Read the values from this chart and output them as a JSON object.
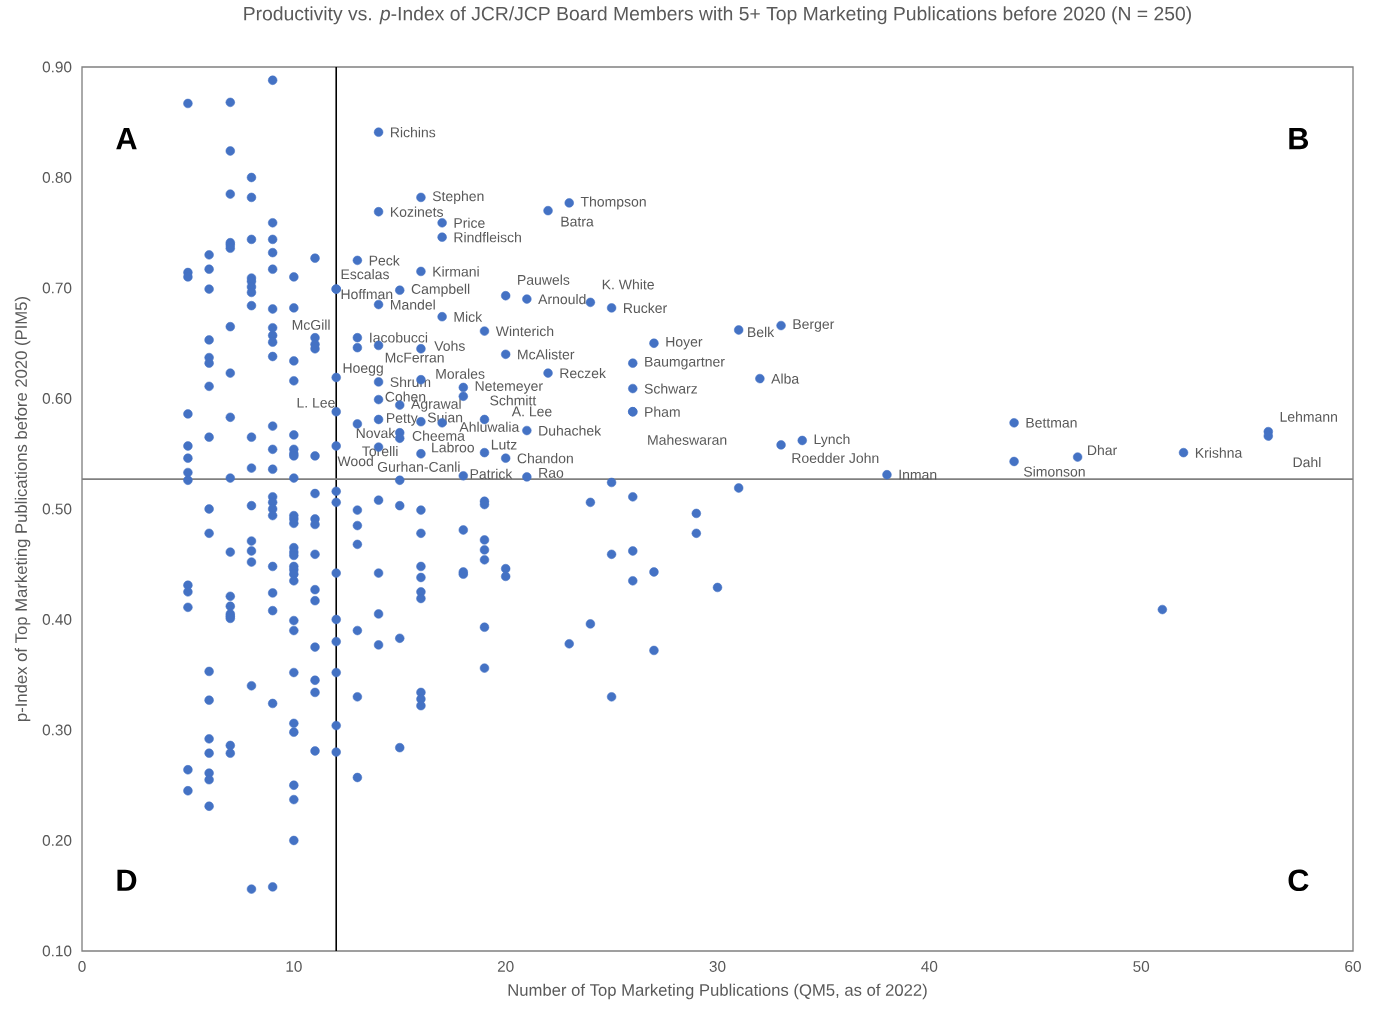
{
  "chart_data": {
    "type": "scatter",
    "title": "Productivity vs. *p*-Index of JCR/JCP Board Members with 5+ Top Marketing Publications before 2020 (N = 250)",
    "xlabel": "Number of Top Marketing Publications (QM5, as of 2022)",
    "ylabel": "p-Index of Top Marketing Publications before 2020 (PIM5)",
    "xlim": [
      0,
      60
    ],
    "xticks": [
      0,
      10,
      20,
      30,
      40,
      50,
      60
    ],
    "ylim": [
      0.1,
      0.9
    ],
    "yticks": [
      {
        "value": 0.1,
        "label": "0.10"
      },
      {
        "value": 0.2,
        "label": "0.20"
      },
      {
        "value": 0.3,
        "label": "0.30"
      },
      {
        "value": 0.4,
        "label": "0.40"
      },
      {
        "value": 0.5,
        "label": "0.50"
      },
      {
        "value": 0.6,
        "label": "0.60"
      },
      {
        "value": 0.7,
        "label": "0.70"
      },
      {
        "value": 0.8,
        "label": "0.80"
      },
      {
        "value": 0.9,
        "label": "0.90"
      }
    ],
    "grid": false,
    "marker": "circle",
    "ref_lines": [
      {
        "axis": "x",
        "value": 12,
        "color": "#000000"
      },
      {
        "axis": "y",
        "value": 0.527,
        "color": "#808080"
      }
    ],
    "series": [
      {
        "color": "#4472c4",
        "x": [
          5,
          5,
          5,
          5,
          5,
          5,
          5,
          5,
          5,
          5,
          5,
          5,
          5,
          6,
          6,
          6,
          6,
          6,
          6,
          6,
          6,
          6,
          6,
          6,
          6,
          6,
          6,
          6,
          6,
          6,
          7,
          7,
          7,
          7,
          7,
          7,
          7,
          7,
          7,
          7,
          7,
          7,
          7,
          7,
          7,
          7,
          7,
          7,
          8,
          8,
          8,
          8,
          8,
          8,
          8,
          8,
          8,
          8,
          8,
          8,
          8,
          8,
          8,
          8,
          9,
          9,
          9,
          9,
          9,
          9,
          9,
          9,
          9,
          9,
          9,
          9,
          9,
          9,
          9,
          9,
          9,
          9,
          9,
          9,
          9,
          9,
          10,
          10,
          10,
          10,
          10,
          10,
          10,
          10,
          10,
          10,
          10,
          10,
          10,
          10,
          10,
          10,
          10,
          10,
          10,
          10,
          10,
          10,
          10,
          10,
          10,
          10,
          10,
          11,
          11,
          11,
          11,
          11,
          11,
          11,
          11,
          11,
          11,
          11,
          11,
          11,
          11,
          11,
          12,
          12,
          12,
          12,
          12,
          12,
          12,
          12,
          12,
          12,
          12,
          12,
          12,
          13,
          13,
          13,
          13,
          13,
          13,
          13,
          13,
          13,
          13,
          14,
          14,
          14,
          14,
          14,
          14,
          14,
          14,
          14,
          14,
          14,
          14,
          15,
          15,
          15,
          15,
          15,
          15,
          15,
          15,
          16,
          16,
          16,
          16,
          16,
          16,
          16,
          16,
          16,
          16,
          16,
          16,
          16,
          16,
          16,
          17,
          17,
          17,
          17,
          18,
          18,
          18,
          18,
          18,
          18,
          19,
          19,
          19,
          19,
          19,
          19,
          19,
          19,
          19,
          19,
          20,
          20,
          20,
          20,
          20,
          21,
          21,
          21,
          22,
          22,
          23,
          23,
          24,
          24,
          24,
          25,
          25,
          25,
          25,
          26,
          26,
          26,
          26,
          26,
          26,
          26,
          27,
          27,
          27,
          29,
          29,
          30,
          31,
          31,
          32,
          33,
          33,
          34,
          38,
          44,
          44,
          47,
          51,
          52,
          56,
          56
        ],
        "values": [
          0.867,
          0.714,
          0.71,
          0.586,
          0.557,
          0.546,
          0.533,
          0.526,
          0.431,
          0.425,
          0.411,
          0.264,
          0.245,
          0.73,
          0.717,
          0.699,
          0.653,
          0.637,
          0.632,
          0.611,
          0.565,
          0.5,
          0.478,
          0.353,
          0.327,
          0.292,
          0.279,
          0.261,
          0.255,
          0.231,
          0.868,
          0.824,
          0.785,
          0.741,
          0.739,
          0.736,
          0.665,
          0.623,
          0.583,
          0.528,
          0.461,
          0.421,
          0.412,
          0.405,
          0.403,
          0.401,
          0.286,
          0.279,
          0.8,
          0.782,
          0.744,
          0.709,
          0.706,
          0.701,
          0.696,
          0.684,
          0.565,
          0.537,
          0.503,
          0.471,
          0.462,
          0.452,
          0.34,
          0.156,
          0.888,
          0.759,
          0.744,
          0.732,
          0.717,
          0.681,
          0.664,
          0.657,
          0.651,
          0.638,
          0.575,
          0.554,
          0.536,
          0.511,
          0.506,
          0.5,
          0.494,
          0.448,
          0.424,
          0.408,
          0.324,
          0.158,
          0.71,
          0.682,
          0.634,
          0.616,
          0.567,
          0.554,
          0.55,
          0.548,
          0.528,
          0.494,
          0.491,
          0.487,
          0.465,
          0.461,
          0.458,
          0.448,
          0.445,
          0.441,
          0.435,
          0.399,
          0.39,
          0.352,
          0.306,
          0.298,
          0.25,
          0.237,
          0.2,
          0.727,
          0.655,
          0.649,
          0.645,
          0.548,
          0.514,
          0.491,
          0.486,
          0.459,
          0.427,
          0.417,
          0.375,
          0.345,
          0.334,
          0.281,
          0.699,
          0.699,
          0.619,
          0.588,
          0.557,
          0.516,
          0.506,
          0.442,
          0.4,
          0.38,
          0.352,
          0.304,
          0.28,
          0.725,
          0.655,
          0.646,
          0.577,
          0.499,
          0.485,
          0.468,
          0.39,
          0.33,
          0.257,
          0.841,
          0.769,
          0.685,
          0.648,
          0.615,
          0.599,
          0.581,
          0.556,
          0.508,
          0.442,
          0.405,
          0.377,
          0.698,
          0.594,
          0.569,
          0.564,
          0.526,
          0.503,
          0.383,
          0.284,
          0.782,
          0.715,
          0.645,
          0.617,
          0.579,
          0.55,
          0.499,
          0.478,
          0.448,
          0.438,
          0.425,
          0.419,
          0.334,
          0.328,
          0.322,
          0.759,
          0.746,
          0.674,
          0.578,
          0.61,
          0.602,
          0.53,
          0.481,
          0.443,
          0.441,
          0.661,
          0.581,
          0.551,
          0.507,
          0.504,
          0.472,
          0.463,
          0.454,
          0.393,
          0.356,
          0.693,
          0.64,
          0.546,
          0.446,
          0.439,
          0.69,
          0.571,
          0.529,
          0.77,
          0.623,
          0.777,
          0.378,
          0.687,
          0.506,
          0.396,
          0.682,
          0.524,
          0.459,
          0.33,
          0.632,
          0.609,
          0.588,
          0.588,
          0.511,
          0.462,
          0.435,
          0.65,
          0.443,
          0.372,
          0.496,
          0.478,
          0.429,
          0.662,
          0.519,
          0.618,
          0.666,
          0.558,
          0.562,
          0.531,
          0.578,
          0.543,
          0.547,
          0.409,
          0.551,
          0.57,
          0.566
        ]
      }
    ],
    "annotations": [
      "A",
      "B",
      "C",
      "D",
      {
        "text": "Richins",
        "x": 14,
        "y": 0.841
      },
      {
        "text": "Stephen",
        "x": 16,
        "y": 0.782
      },
      {
        "text": "Kozinets",
        "x": 14,
        "y": 0.769
      },
      {
        "text": "Thompson",
        "x": 23,
        "y": 0.777
      },
      {
        "text": "Batra",
        "x": 22,
        "y": 0.77
      },
      {
        "text": "Price",
        "x": 17,
        "y": 0.759
      },
      {
        "text": "Rindfleisch",
        "x": 17,
        "y": 0.746
      },
      {
        "text": "Peck",
        "x": 13,
        "y": 0.725
      },
      {
        "text": "Kirmani",
        "x": 16,
        "y": 0.715
      },
      {
        "text": "Escalas",
        "x": 12,
        "y": 0.699
      },
      {
        "text": "Hoffman",
        "x": 12,
        "y": 0.699
      },
      {
        "text": "Campbell",
        "x": 15,
        "y": 0.698
      },
      {
        "text": "Pauwels",
        "x": 20,
        "y": 0.693
      },
      {
        "text": "Arnould",
        "x": 21,
        "y": 0.69
      },
      {
        "text": "K. White",
        "x": 24,
        "y": 0.687
      },
      {
        "text": "Mandel",
        "x": 14,
        "y": 0.685
      },
      {
        "text": "Rucker",
        "x": 25,
        "y": 0.682
      },
      {
        "text": "Mick",
        "x": 17,
        "y": 0.674
      },
      {
        "text": "Winterich",
        "x": 19,
        "y": 0.661
      },
      {
        "text": "McGill",
        "x": 13,
        "y": 0.655
      },
      {
        "text": "Iacobucci",
        "x": 14,
        "y": 0.648
      },
      {
        "text": "McFerran",
        "x": 13,
        "y": 0.646
      },
      {
        "text": "Vohs",
        "x": 16,
        "y": 0.645
      },
      {
        "text": "McAlister",
        "x": 20,
        "y": 0.64
      },
      {
        "text": "Hoyer",
        "x": 27,
        "y": 0.65
      },
      {
        "text": "Berger",
        "x": 33,
        "y": 0.666
      },
      {
        "text": "Belk",
        "x": 31,
        "y": 0.662
      },
      {
        "text": "Baumgartner",
        "x": 26,
        "y": 0.632
      },
      {
        "text": "Reczek",
        "x": 22,
        "y": 0.623
      },
      {
        "text": "Hoegg",
        "x": 12,
        "y": 0.619
      },
      {
        "text": "Alba",
        "x": 32,
        "y": 0.618
      },
      {
        "text": "Shrum",
        "x": 14,
        "y": 0.615
      },
      {
        "text": "Morales",
        "x": 16,
        "y": 0.617
      },
      {
        "text": "Netemeyer",
        "x": 18,
        "y": 0.61
      },
      {
        "text": "Schmitt",
        "x": 18,
        "y": 0.602
      },
      {
        "text": "Schwarz",
        "x": 26,
        "y": 0.609
      },
      {
        "text": "Cohen",
        "x": 14,
        "y": 0.599
      },
      {
        "text": "Agrawal",
        "x": 15,
        "y": 0.594
      },
      {
        "text": "L. Lee",
        "x": 12,
        "y": 0.588
      },
      {
        "text": "Pham",
        "x": 26,
        "y": 0.588
      },
      {
        "text": "A. Lee",
        "x": 19,
        "y": 0.581
      },
      {
        "text": "Petty",
        "x": 14,
        "y": 0.581
      },
      {
        "text": "Sujan",
        "x": 16,
        "y": 0.579
      },
      {
        "text": "Ahluwalia",
        "x": 17,
        "y": 0.578
      },
      {
        "text": "Novak",
        "x": 13,
        "y": 0.577
      },
      {
        "text": "Bettman",
        "x": 44,
        "y": 0.578
      },
      {
        "text": "Duhachek",
        "x": 21,
        "y": 0.571
      },
      {
        "text": "Lehmann",
        "x": 56,
        "y": 0.57
      },
      {
        "text": "Cheema",
        "x": 15,
        "y": 0.569
      },
      {
        "text": "Dahl",
        "x": 56,
        "y": 0.566
      },
      {
        "text": "Labroo",
        "x": 15,
        "y": 0.564
      },
      {
        "text": "Maheswaran",
        "x": 26,
        "y": 0.588
      },
      {
        "text": "Lynch",
        "x": 34,
        "y": 0.562
      },
      {
        "text": "Roedder John",
        "x": 33,
        "y": 0.558
      },
      {
        "text": "Torelli",
        "x": 14,
        "y": 0.556
      },
      {
        "text": "Wood",
        "x": 12,
        "y": 0.557
      },
      {
        "text": "Lutz",
        "x": 19,
        "y": 0.551
      },
      {
        "text": "Krishna",
        "x": 52,
        "y": 0.551
      },
      {
        "text": "Gurhan-Canli",
        "x": 16,
        "y": 0.55
      },
      {
        "text": "Dhar",
        "x": 47,
        "y": 0.547
      },
      {
        "text": "Chandon",
        "x": 20,
        "y": 0.546
      },
      {
        "text": "Simonson",
        "x": 44,
        "y": 0.543
      },
      {
        "text": "Inman",
        "x": 38,
        "y": 0.531
      },
      {
        "text": "Patrick",
        "x": 18,
        "y": 0.53
      },
      {
        "text": "Rao",
        "x": 21,
        "y": 0.529
      }
    ]
  }
}
